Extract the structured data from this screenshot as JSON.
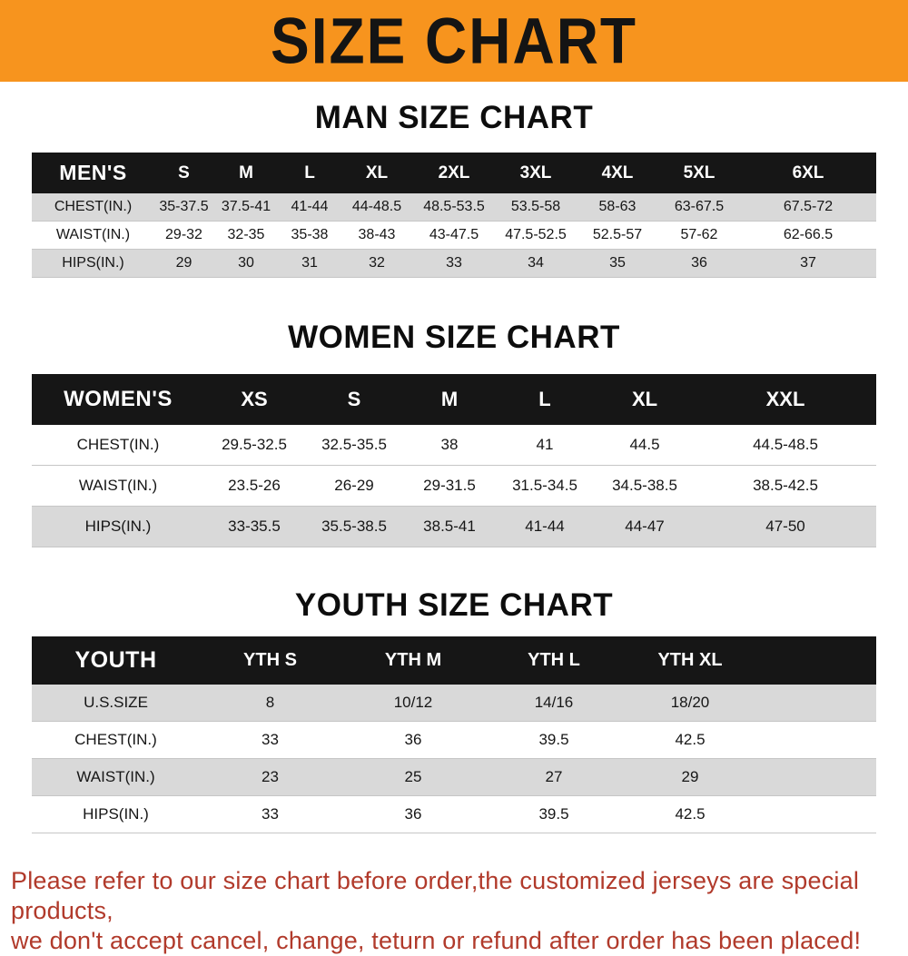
{
  "banner": {
    "title": "SIZE CHART"
  },
  "sections": [
    {
      "heading": "MAN SIZE CHART",
      "table": {
        "header": [
          "MEN'S",
          "S",
          "M",
          "L",
          "XL",
          "2XL",
          "3XL",
          "4XL",
          "5XL",
          "6XL"
        ],
        "rows": [
          [
            "CHEST(IN.)",
            "35-37.5",
            "37.5-41",
            "41-44",
            "44-48.5",
            "48.5-53.5",
            "53.5-58",
            "58-63",
            "63-67.5",
            "67.5-72"
          ],
          [
            "WAIST(IN.)",
            "29-32",
            "32-35",
            "35-38",
            "38-43",
            "43-47.5",
            "47.5-52.5",
            "52.5-57",
            "57-62",
            "62-66.5"
          ],
          [
            "HIPS(IN.)",
            "29",
            "30",
            "31",
            "32",
            "33",
            "34",
            "35",
            "36",
            "37"
          ]
        ]
      }
    },
    {
      "heading": "WOMEN SIZE CHART",
      "table": {
        "header": [
          "WOMEN'S",
          "XS",
          "S",
          "M",
          "L",
          "XL",
          "XXL"
        ],
        "rows": [
          [
            "CHEST(IN.)",
            "29.5-32.5",
            "32.5-35.5",
            "38",
            "41",
            "44.5",
            "44.5-48.5"
          ],
          [
            "WAIST(IN.)",
            "23.5-26",
            "26-29",
            "29-31.5",
            "31.5-34.5",
            "34.5-38.5",
            "38.5-42.5"
          ],
          [
            "HIPS(IN.)",
            "33-35.5",
            "35.5-38.5",
            "38.5-41",
            "41-44",
            "44-47",
            "47-50"
          ]
        ]
      }
    },
    {
      "heading": "YOUTH SIZE CHART",
      "table": {
        "header": [
          "YOUTH",
          "YTH S",
          "YTH M",
          "YTH L",
          "YTH XL"
        ],
        "rows": [
          [
            "U.S.SIZE",
            "8",
            "10/12",
            "14/16",
            "18/20"
          ],
          [
            "CHEST(IN.)",
            "33",
            "36",
            "39.5",
            "42.5"
          ],
          [
            "WAIST(IN.)",
            "23",
            "25",
            "27",
            "29"
          ],
          [
            "HIPS(IN.)",
            "33",
            "36",
            "39.5",
            "42.5"
          ]
        ]
      }
    }
  ],
  "footer": {
    "lines": [
      "Please refer to our size chart before order,the customized jerseys are special products,",
      "we don't accept cancel, change, teturn or refund after order has been placed!"
    ]
  },
  "theme": {
    "banner-bg": "#f7941e",
    "banner-text": "#141414",
    "header-bg": "#161616",
    "header-text": "#ffffff",
    "stripe": "#d9d9d9",
    "footer-text": "#b13a2b"
  }
}
